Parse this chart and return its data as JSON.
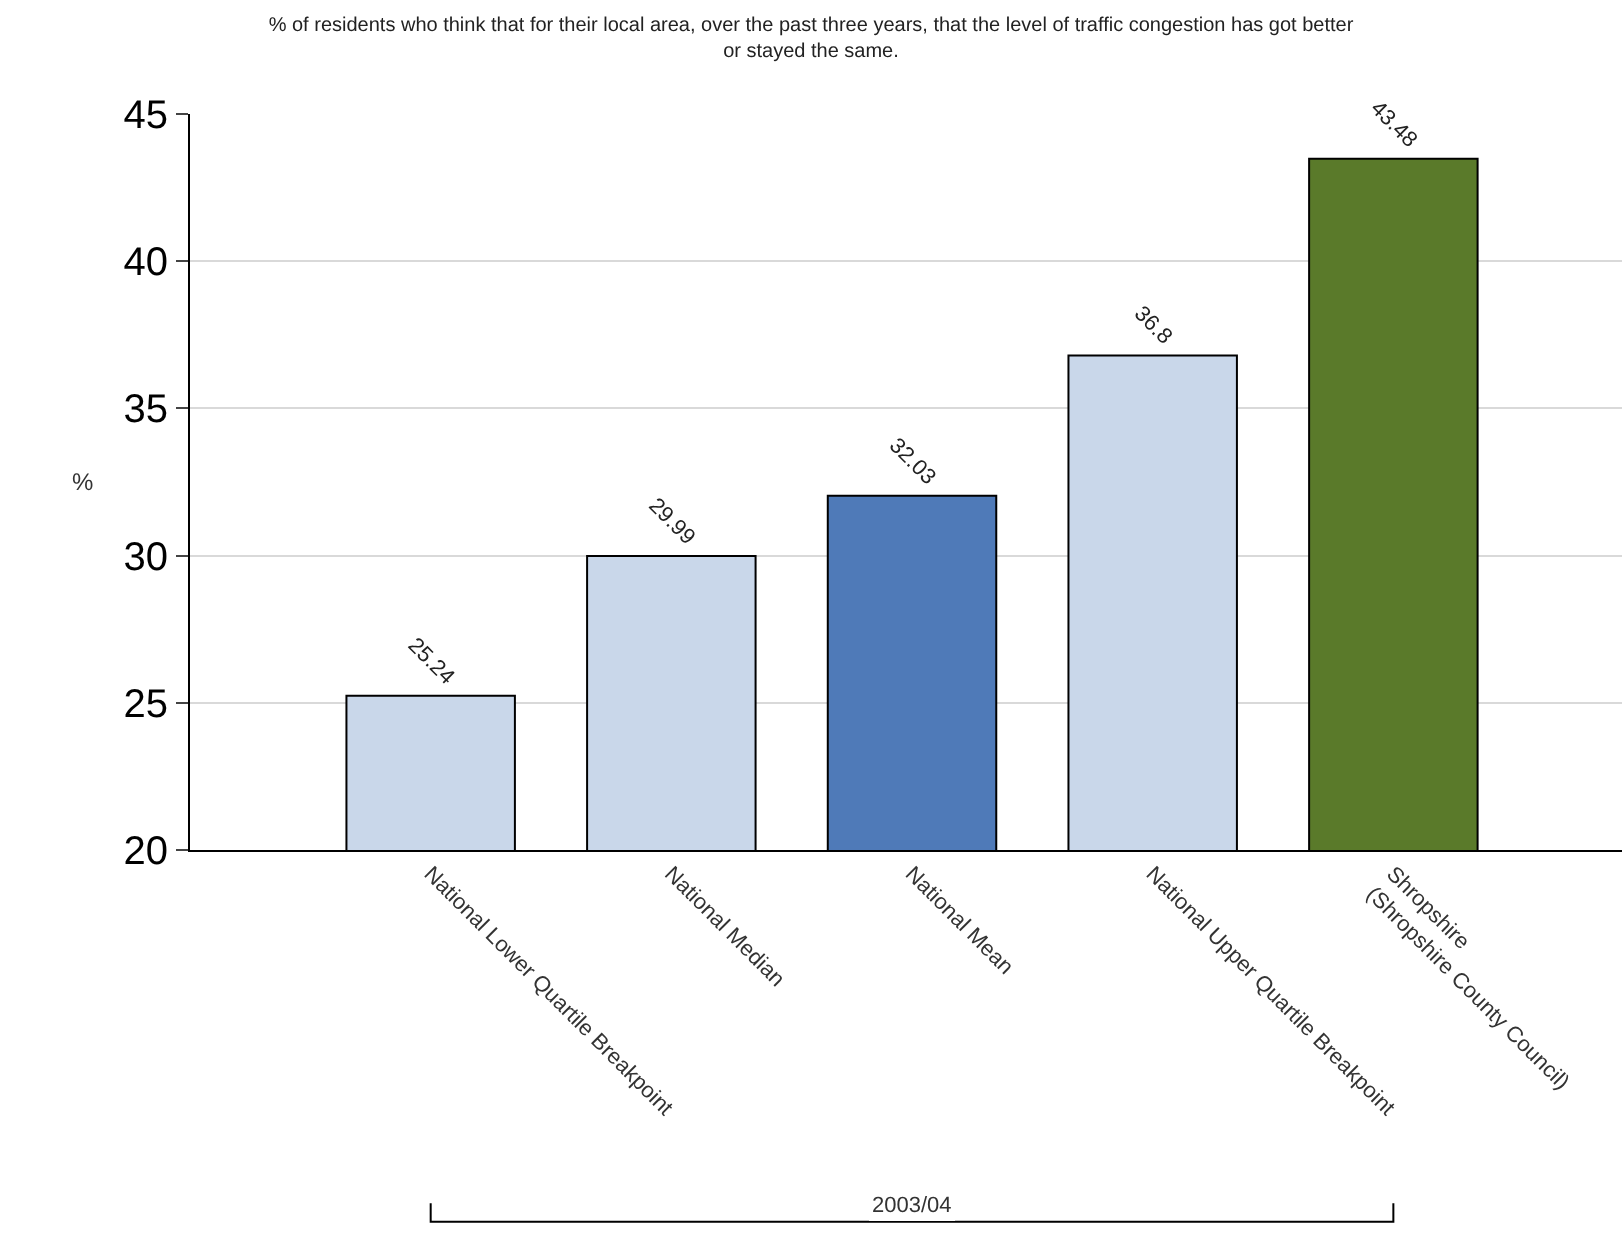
{
  "chart_data": {
    "type": "bar",
    "title": "% of residents who think that for their local area, over the past three years, that the level of traffic congestion has got better\nor stayed the same.",
    "ylabel": "%",
    "categories": [
      "National Lower Quartile Breakpoint",
      "National Median",
      "National Mean",
      "National Upper Quartile Breakpoint",
      "Shropshire\n(Shropshire County Council)"
    ],
    "values": [
      25.24,
      29.99,
      32.03,
      36.8,
      43.48
    ],
    "colors": [
      "#c9d7ea",
      "#c9d7ea",
      "#4f7ab8",
      "#c9d7ea",
      "#5a7a2a"
    ],
    "ylim": [
      20,
      45
    ],
    "yticks": [
      20,
      25,
      30,
      35,
      40,
      45
    ],
    "grid": "y",
    "data_labels": true,
    "annotations": [
      "2003/04"
    ]
  }
}
